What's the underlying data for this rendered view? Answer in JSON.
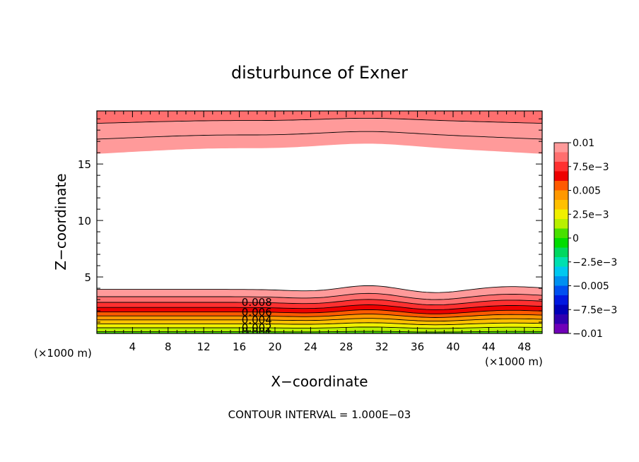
{
  "chart_data": {
    "type": "heatmap",
    "title": "disturbunce of Exner",
    "xlabel": "X−coordinate",
    "ylabel": "Z−coordinate",
    "x_unit_left": "(×1000 m)",
    "x_unit_right": "(×1000 m)",
    "xlim": [
      0,
      50
    ],
    "ylim": [
      0,
      19.7
    ],
    "x_ticks": [
      4,
      8,
      12,
      16,
      20,
      24,
      28,
      32,
      36,
      40,
      44,
      48
    ],
    "x_tick_labels": [
      "4",
      "8",
      "12",
      "16",
      "20",
      "24",
      "28",
      "32",
      "36",
      "40",
      "44",
      "48"
    ],
    "y_ticks": [
      5,
      10,
      15
    ],
    "y_tick_labels": [
      "5",
      "10",
      "15"
    ],
    "footer": "CONTOUR INTERVAL = 1.000E−03",
    "contour_interval": 0.001,
    "colorbar": {
      "range": [
        -0.01,
        0.01
      ],
      "tick_values": [
        0.01,
        0.0075,
        0.005,
        0.0025,
        0,
        -0.0025,
        -0.005,
        -0.0075,
        -0.01
      ],
      "tick_labels": [
        "0.01",
        "7.5e−3",
        "0.005",
        "2.5e−3",
        "0",
        "−2.5e−3",
        "−0.005",
        "−7.5e−3",
        "−0.01"
      ],
      "band_colors": [
        "#ff9a9a",
        "#ff6f6f",
        "#ff3030",
        "#ee0000",
        "#ff5a00",
        "#ff9800",
        "#ffc000",
        "#f0f000",
        "#b8f000",
        "#48e000",
        "#00dc00",
        "#00d860",
        "#00e0b0",
        "#00c8f0",
        "#0090f0",
        "#0050f0",
        "#0018e0",
        "#0000b8",
        "#3000b0",
        "#7000b8"
      ]
    },
    "contour_labels": [
      "0.008",
      "0.006",
      "0.004",
      "0.002",
      "0.001"
    ],
    "lower_contour_levels": [
      0.001,
      0.002,
      0.003,
      0.004,
      0.005,
      0.006,
      0.007,
      0.008,
      0.009,
      0.01
    ],
    "lower_level_heights_at_x0": [
      0.15,
      0.5,
      0.85,
      1.2,
      1.55,
      1.9,
      2.3,
      2.75,
      3.25,
      3.9
    ],
    "upper_contour_levels": [
      0.01,
      0.009,
      0.008
    ],
    "upper_level_heights_at_x0": [
      15.9,
      17.2,
      18.6
    ]
  }
}
